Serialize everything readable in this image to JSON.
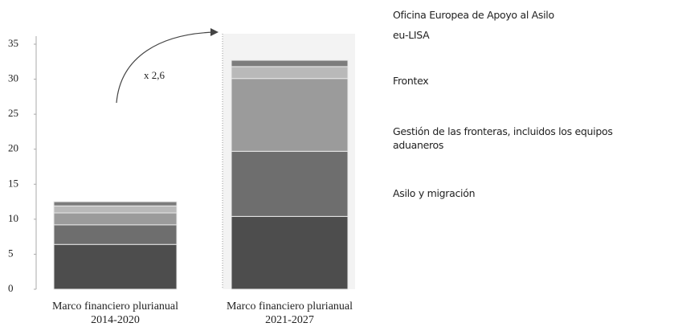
{
  "chart_data": {
    "type": "stacked-bar",
    "categories": [
      "Marco financiero plurianual 2014-2020",
      "Marco financiero plurianual 2021-2027"
    ],
    "series": [
      {
        "name": "Asilo y migración",
        "color": "#4d4d4d",
        "values": [
          6.4,
          10.4
        ]
      },
      {
        "name": "Gestión de las fronteras, incluidos los equipos aduaneros",
        "color": "#6e6e6e",
        "values": [
          2.8,
          9.3
        ]
      },
      {
        "name": "Frontex",
        "color": "#9b9b9b",
        "values": [
          1.7,
          10.4
        ]
      },
      {
        "name": "eu-LISA",
        "color": "#b9b9b9",
        "values": [
          1.0,
          1.7
        ]
      },
      {
        "name": "Oficina Europea de Apoyo al Asilo",
        "color": "#7c7c7c",
        "values": [
          0.6,
          0.9
        ]
      }
    ],
    "annotation": "x 2,6",
    "ylim": [
      0,
      35
    ],
    "yticks": [
      0,
      5,
      10,
      15,
      20,
      25,
      30,
      35
    ]
  }
}
